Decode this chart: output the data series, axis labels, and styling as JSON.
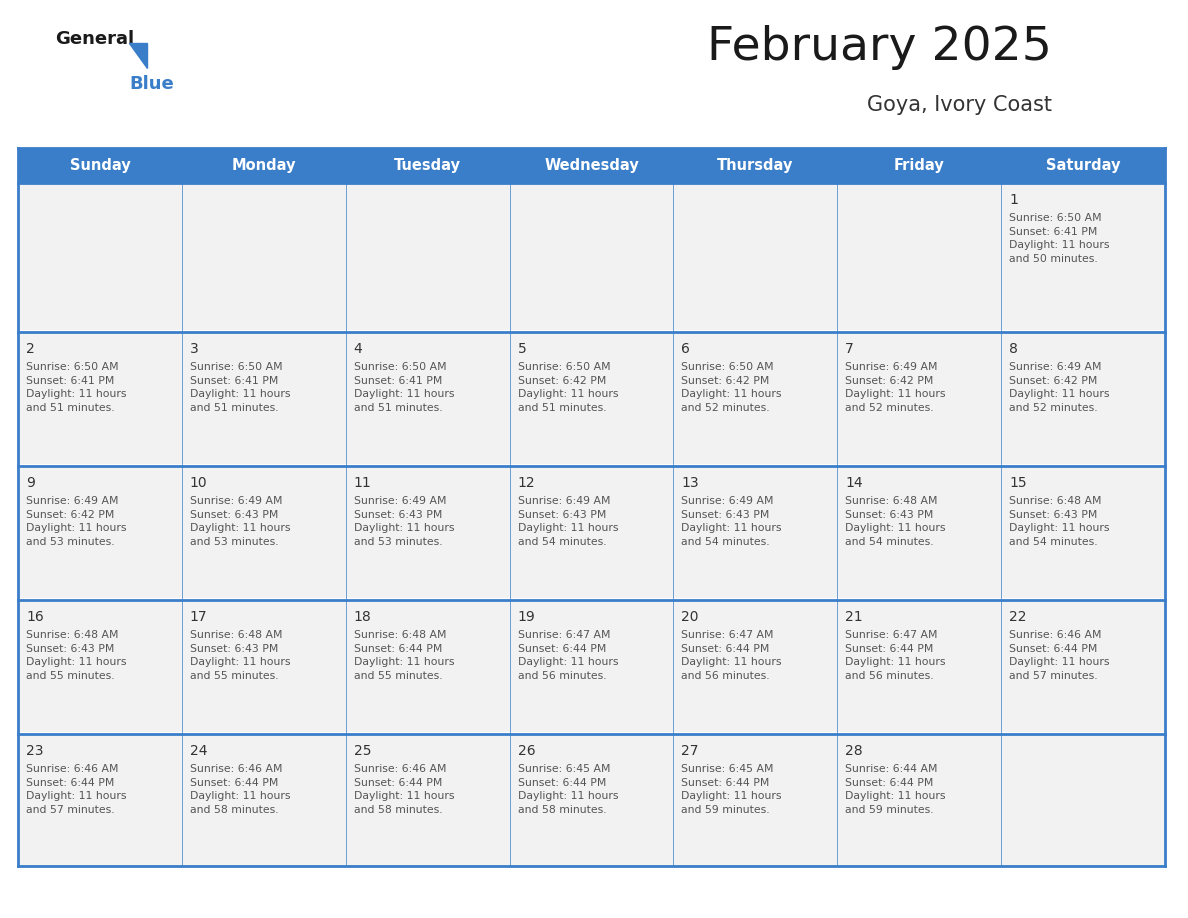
{
  "title": "February 2025",
  "subtitle": "Goya, Ivory Coast",
  "days_of_week": [
    "Sunday",
    "Monday",
    "Tuesday",
    "Wednesday",
    "Thursday",
    "Friday",
    "Saturday"
  ],
  "header_bg": "#3A7DC9",
  "header_text": "#FFFFFF",
  "cell_bg": "#F2F2F2",
  "border_color": "#3A7DC9",
  "day_number_color": "#333333",
  "text_color": "#555555",
  "title_color": "#1a1a1a",
  "subtitle_color": "#333333",
  "calendar_data": [
    [
      null,
      null,
      null,
      null,
      null,
      null,
      1
    ],
    [
      2,
      3,
      4,
      5,
      6,
      7,
      8
    ],
    [
      9,
      10,
      11,
      12,
      13,
      14,
      15
    ],
    [
      16,
      17,
      18,
      19,
      20,
      21,
      22
    ],
    [
      23,
      24,
      25,
      26,
      27,
      28,
      null
    ]
  ],
  "cell_content": {
    "1": "Sunrise: 6:50 AM\nSunset: 6:41 PM\nDaylight: 11 hours\nand 50 minutes.",
    "2": "Sunrise: 6:50 AM\nSunset: 6:41 PM\nDaylight: 11 hours\nand 51 minutes.",
    "3": "Sunrise: 6:50 AM\nSunset: 6:41 PM\nDaylight: 11 hours\nand 51 minutes.",
    "4": "Sunrise: 6:50 AM\nSunset: 6:41 PM\nDaylight: 11 hours\nand 51 minutes.",
    "5": "Sunrise: 6:50 AM\nSunset: 6:42 PM\nDaylight: 11 hours\nand 51 minutes.",
    "6": "Sunrise: 6:50 AM\nSunset: 6:42 PM\nDaylight: 11 hours\nand 52 minutes.",
    "7": "Sunrise: 6:49 AM\nSunset: 6:42 PM\nDaylight: 11 hours\nand 52 minutes.",
    "8": "Sunrise: 6:49 AM\nSunset: 6:42 PM\nDaylight: 11 hours\nand 52 minutes.",
    "9": "Sunrise: 6:49 AM\nSunset: 6:42 PM\nDaylight: 11 hours\nand 53 minutes.",
    "10": "Sunrise: 6:49 AM\nSunset: 6:43 PM\nDaylight: 11 hours\nand 53 minutes.",
    "11": "Sunrise: 6:49 AM\nSunset: 6:43 PM\nDaylight: 11 hours\nand 53 minutes.",
    "12": "Sunrise: 6:49 AM\nSunset: 6:43 PM\nDaylight: 11 hours\nand 54 minutes.",
    "13": "Sunrise: 6:49 AM\nSunset: 6:43 PM\nDaylight: 11 hours\nand 54 minutes.",
    "14": "Sunrise: 6:48 AM\nSunset: 6:43 PM\nDaylight: 11 hours\nand 54 minutes.",
    "15": "Sunrise: 6:48 AM\nSunset: 6:43 PM\nDaylight: 11 hours\nand 54 minutes.",
    "16": "Sunrise: 6:48 AM\nSunset: 6:43 PM\nDaylight: 11 hours\nand 55 minutes.",
    "17": "Sunrise: 6:48 AM\nSunset: 6:43 PM\nDaylight: 11 hours\nand 55 minutes.",
    "18": "Sunrise: 6:48 AM\nSunset: 6:44 PM\nDaylight: 11 hours\nand 55 minutes.",
    "19": "Sunrise: 6:47 AM\nSunset: 6:44 PM\nDaylight: 11 hours\nand 56 minutes.",
    "20": "Sunrise: 6:47 AM\nSunset: 6:44 PM\nDaylight: 11 hours\nand 56 minutes.",
    "21": "Sunrise: 6:47 AM\nSunset: 6:44 PM\nDaylight: 11 hours\nand 56 minutes.",
    "22": "Sunrise: 6:46 AM\nSunset: 6:44 PM\nDaylight: 11 hours\nand 57 minutes.",
    "23": "Sunrise: 6:46 AM\nSunset: 6:44 PM\nDaylight: 11 hours\nand 57 minutes.",
    "24": "Sunrise: 6:46 AM\nSunset: 6:44 PM\nDaylight: 11 hours\nand 58 minutes.",
    "25": "Sunrise: 6:46 AM\nSunset: 6:44 PM\nDaylight: 11 hours\nand 58 minutes.",
    "26": "Sunrise: 6:45 AM\nSunset: 6:44 PM\nDaylight: 11 hours\nand 58 minutes.",
    "27": "Sunrise: 6:45 AM\nSunset: 6:44 PM\nDaylight: 11 hours\nand 59 minutes.",
    "28": "Sunrise: 6:44 AM\nSunset: 6:44 PM\nDaylight: 11 hours\nand 59 minutes."
  },
  "fig_width": 11.88,
  "fig_height": 9.18,
  "dpi": 100
}
